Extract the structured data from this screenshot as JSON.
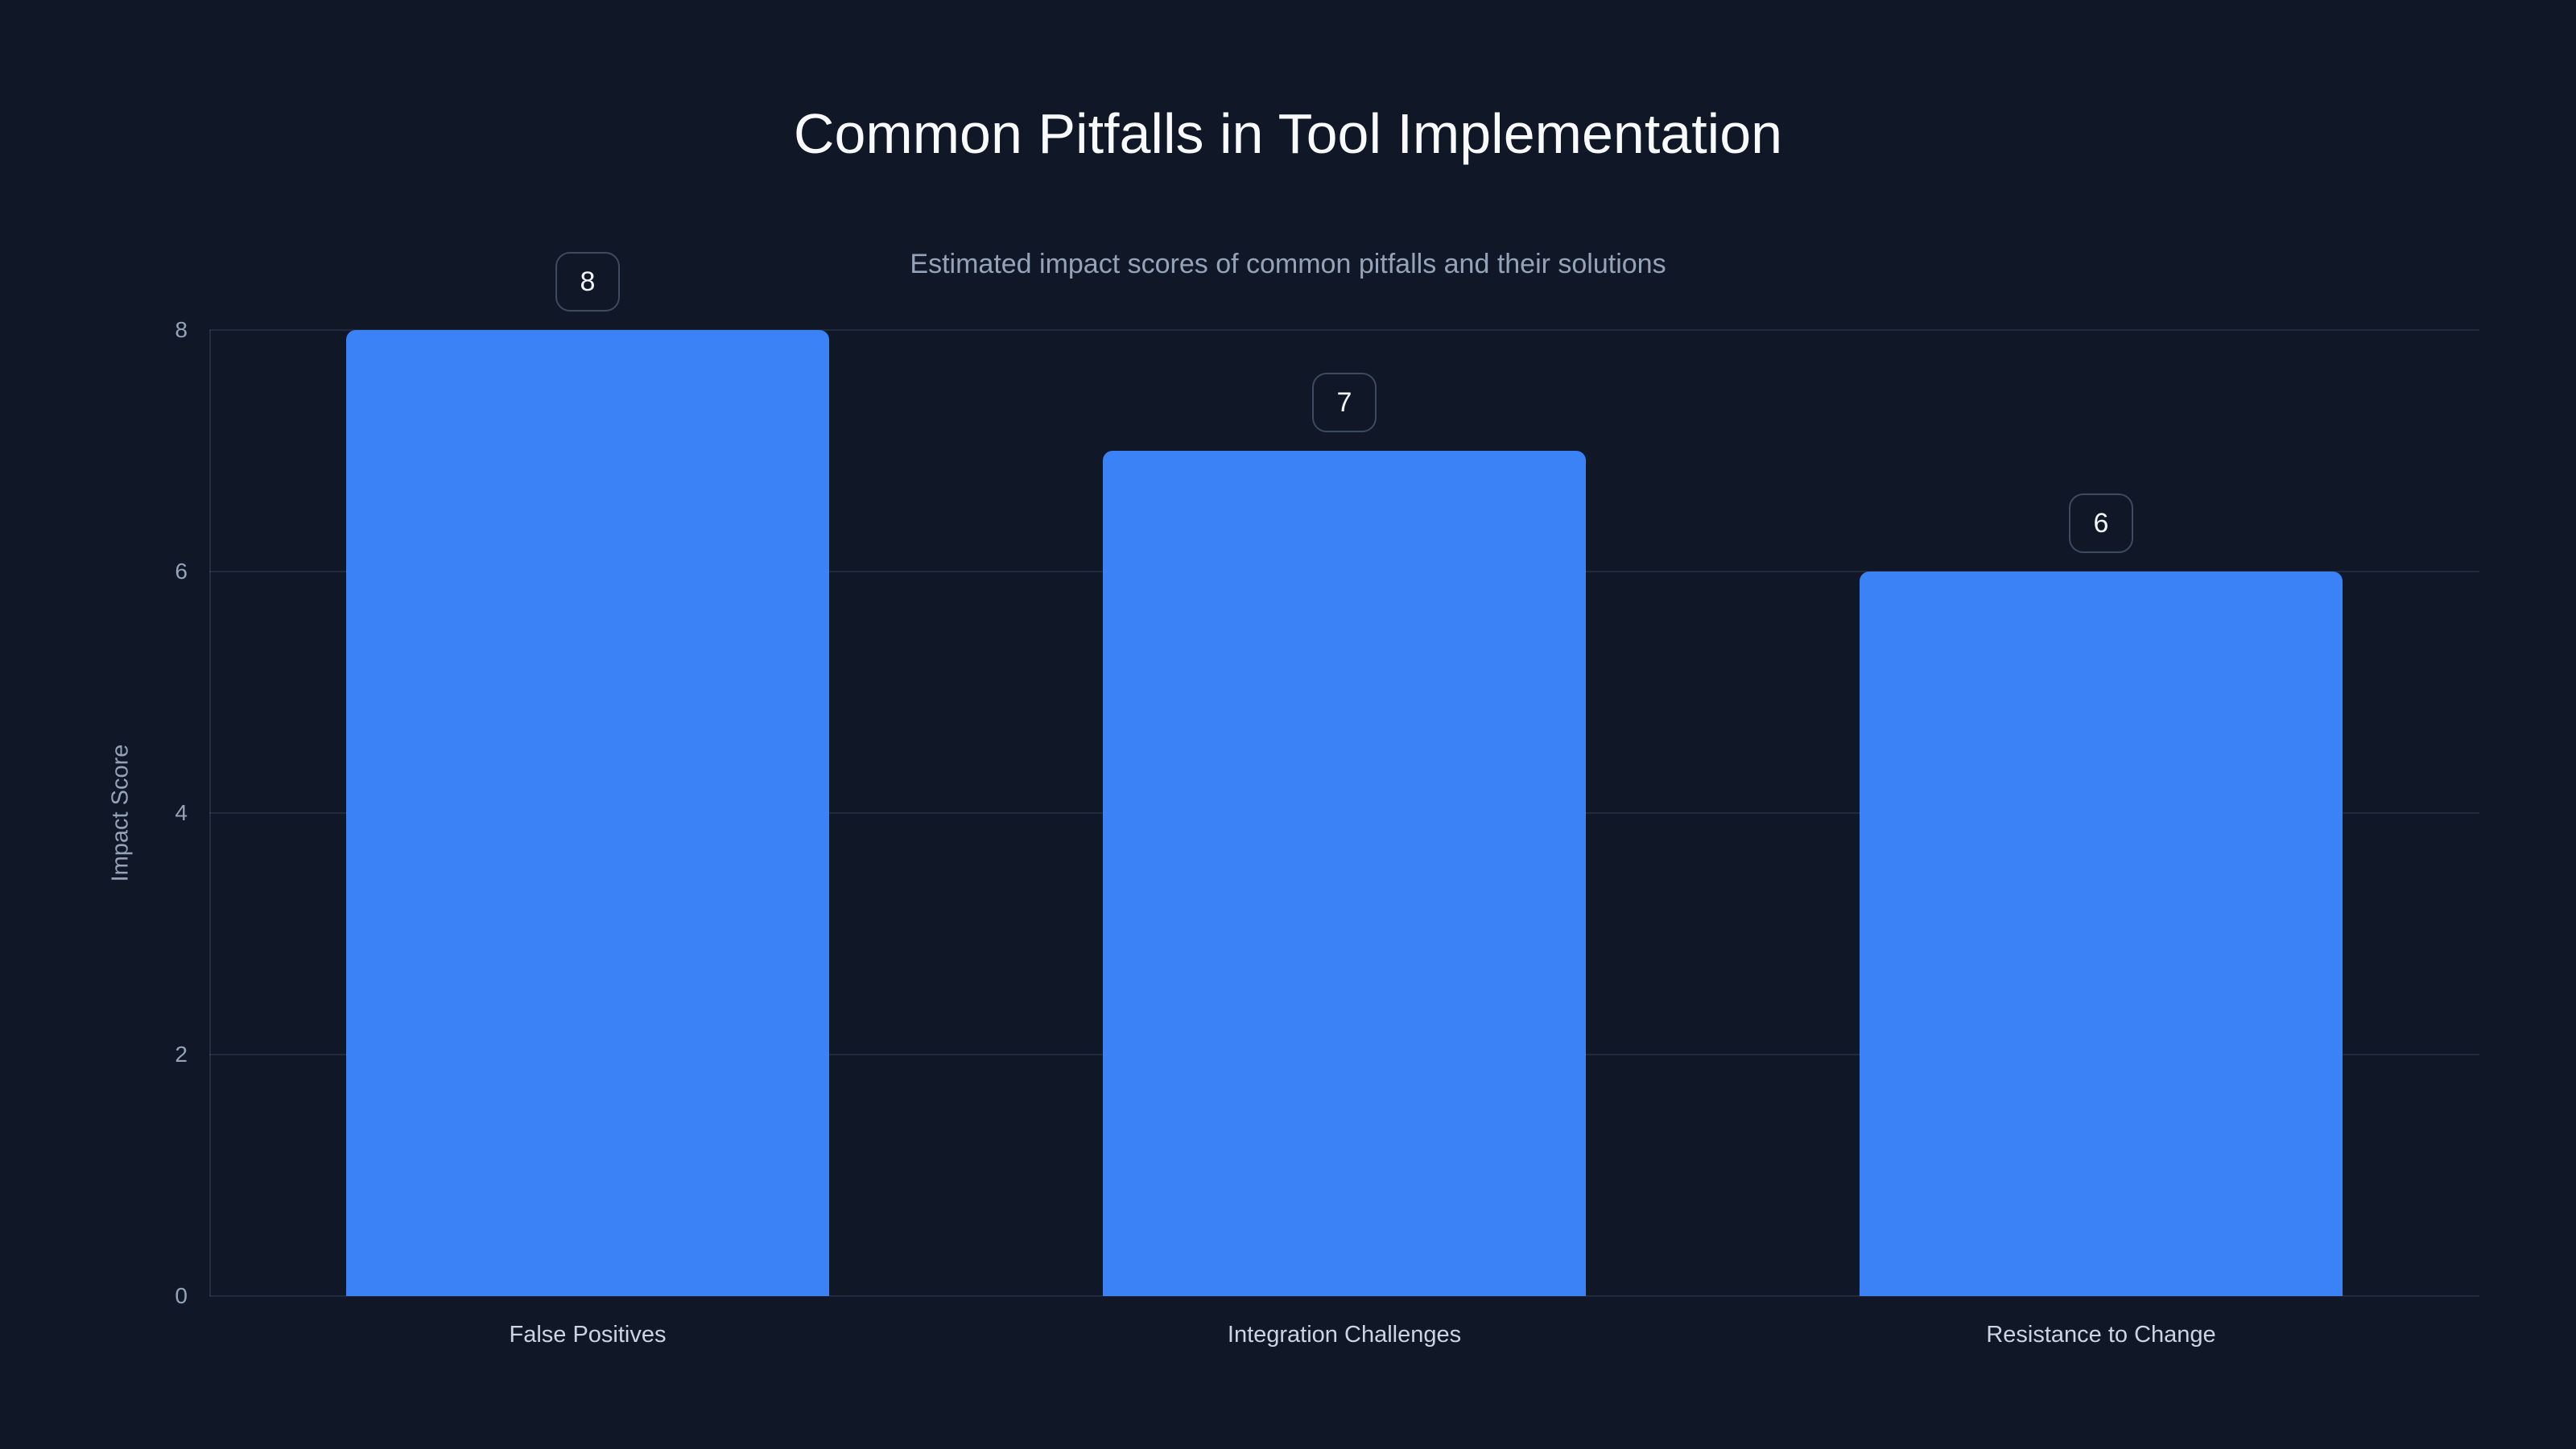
{
  "title": "Common Pitfalls in Tool Implementation",
  "subtitle": "Estimated impact scores of common pitfalls and their solutions",
  "chart_data": {
    "type": "bar",
    "categories": [
      "False Positives",
      "Integration Challenges",
      "Resistance to Change"
    ],
    "values": [
      8,
      7,
      6
    ],
    "value_labels": [
      "8",
      "7",
      "6"
    ],
    "title": "Common Pitfalls in Tool Implementation",
    "subtitle": "Estimated impact scores of common pitfalls and their solutions",
    "xlabel": "",
    "ylabel": "Impact Score",
    "ylim": [
      0,
      8
    ],
    "yticks": [
      0,
      2,
      4,
      6,
      8
    ],
    "grid": true,
    "legend": false,
    "legend_position": "none",
    "bar_color": "#3b82f6",
    "background_color": "#101828",
    "title_color": "#f8fafc",
    "subtitle_color": "#94a3b8",
    "tick_label_color": "#94a3b8",
    "category_label_color": "#cbd5e1",
    "badge_border_color": "#3d4a5f",
    "badge_text_color": "#f1f5f9",
    "gridline_color": "rgba(148,163,184,0.14)"
  }
}
